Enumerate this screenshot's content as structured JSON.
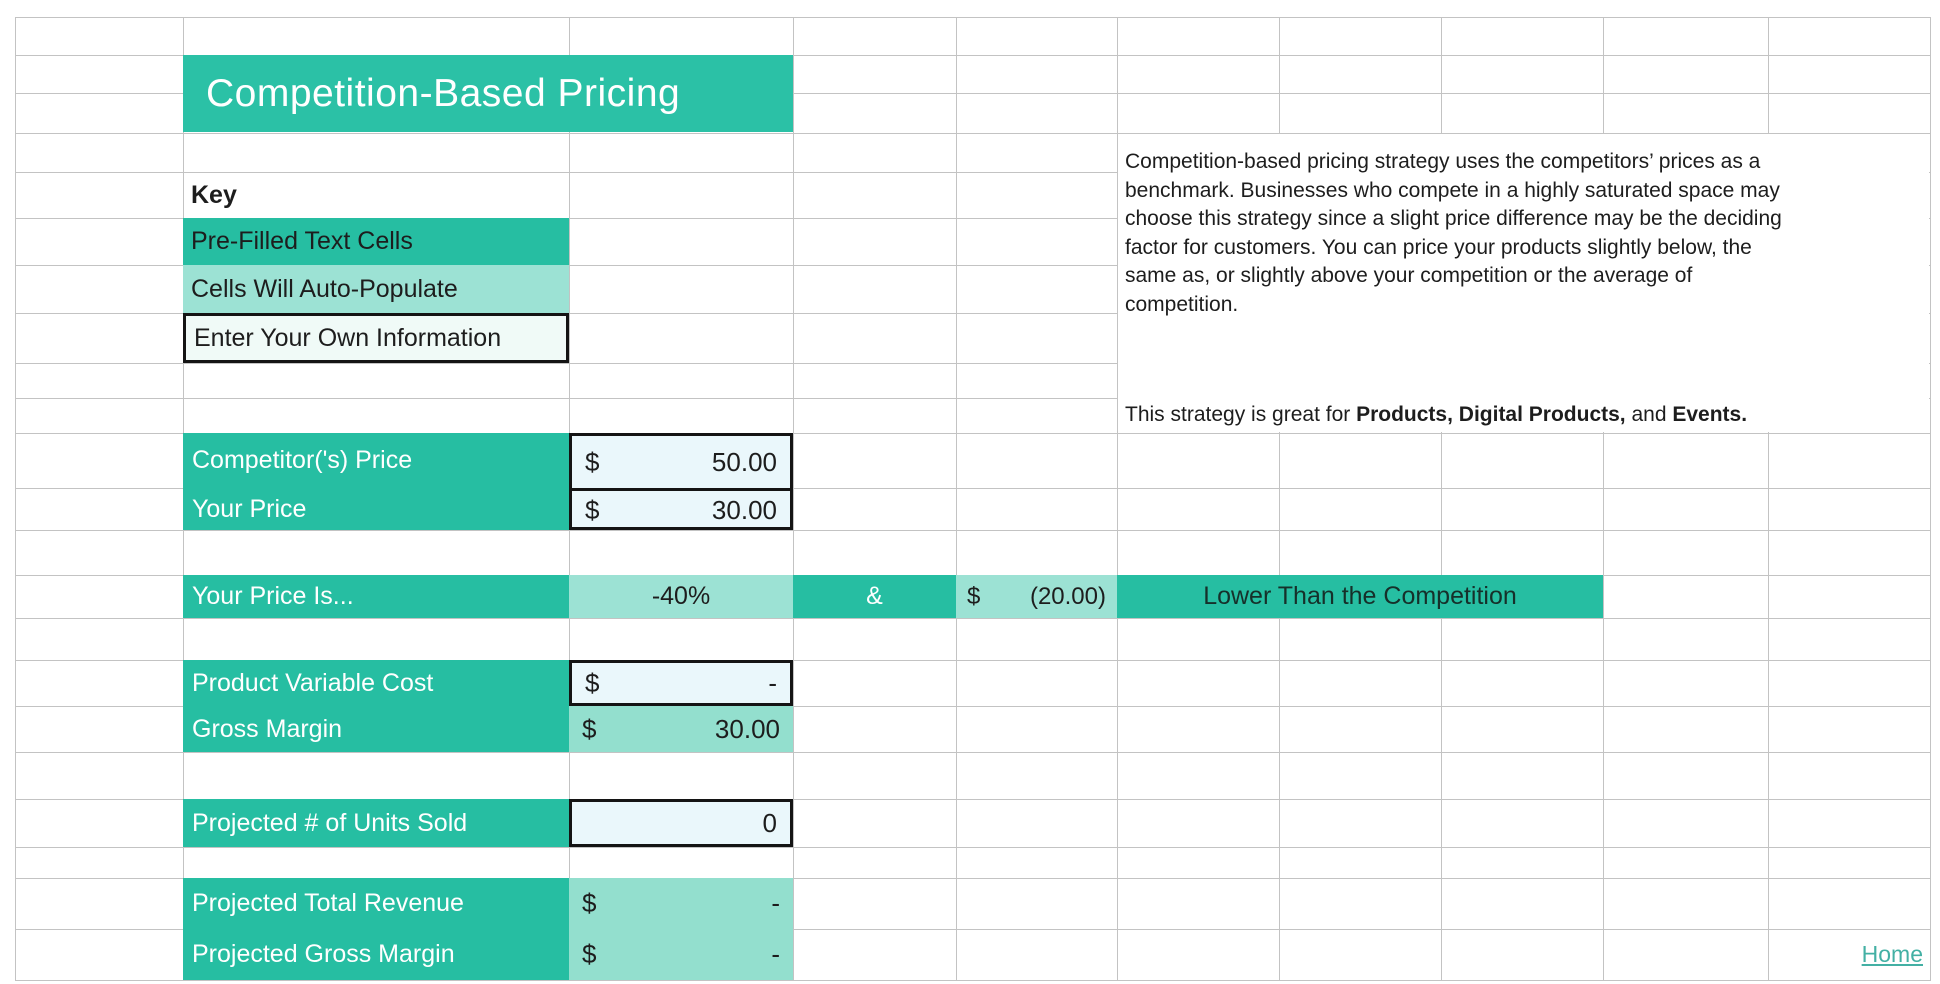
{
  "title": "Competition-Based Pricing",
  "key": {
    "heading": "Key",
    "prefilled_label": "Pre-Filled Text Cells",
    "auto_label": "Cells Will Auto-Populate",
    "input_label": "Enter Your Own Information"
  },
  "cells": {
    "competitor_price": {
      "label": "Competitor('s) Price",
      "currency": "$",
      "value": "50.00"
    },
    "your_price": {
      "label": "Your Price",
      "currency": "$",
      "value": "30.00"
    },
    "price_comparison": {
      "label": "Your Price Is...",
      "percent": "-40%",
      "conjunction": "&",
      "currency": "$",
      "amount": "(20.00)",
      "result": "Lower Than the Competition"
    },
    "product_variable_cost": {
      "label": "Product Variable Cost",
      "currency": "$",
      "value": "-"
    },
    "gross_margin": {
      "label": "Gross Margin",
      "currency": "$",
      "value": "30.00"
    },
    "projected_units_sold": {
      "label": "Projected # of Units Sold",
      "value": "0"
    },
    "projected_total_revenue": {
      "label": "Projected Total Revenue",
      "currency": "$",
      "value": "-"
    },
    "projected_gross_margin": {
      "label": "Projected Gross Margin",
      "currency": "$",
      "value": "-"
    }
  },
  "description": {
    "paragraph_lines": [
      "Competition-based pricing strategy uses the competitors’ prices as a",
      "benchmark. Businesses who compete in a highly saturated space may",
      "choose this strategy since a slight price difference may be the deciding",
      "factor for customers. You can price your products slightly below, the",
      "same as, or slightly above your competition or the average of",
      "competition."
    ],
    "highlight_line": {
      "segments": [
        {
          "text": "This strategy is great for ",
          "bold": false
        },
        {
          "text": "Products, Digital Products,",
          "bold": true
        },
        {
          "text": " and ",
          "bold": false
        },
        {
          "text": "Events.",
          "bold": true
        }
      ]
    }
  },
  "nav": {
    "home_label": "Home"
  },
  "colors": {
    "teal": "#26BEA2",
    "teal_banner": "#2BC1A6",
    "light_teal": "#9CE2D4",
    "light_teal_2": "#93DFCE",
    "input_blue": "#EAF7FB",
    "input_pale": "#F0FAF7",
    "grid_line": "#C3C3C3",
    "link": "#43B0A4"
  }
}
